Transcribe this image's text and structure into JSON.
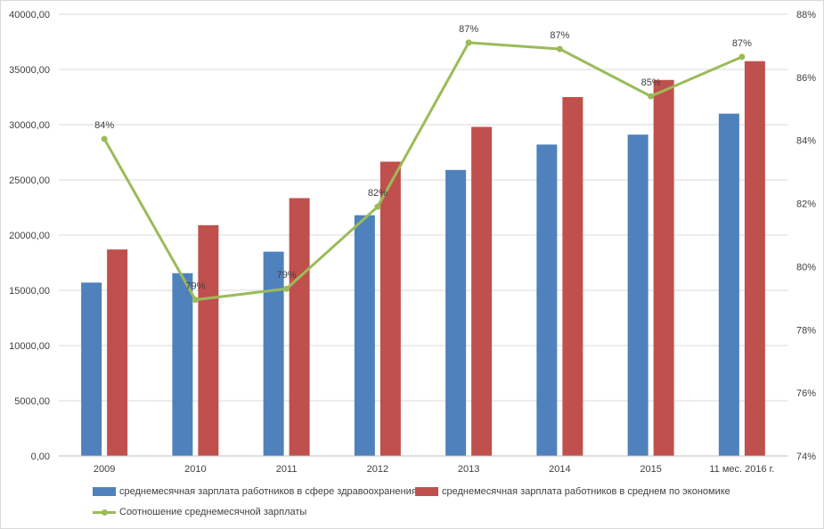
{
  "chart_data": {
    "type": "bar",
    "title": "",
    "categories": [
      "2009",
      "2010",
      "2011",
      "2012",
      "2013",
      "2014",
      "2015",
      "11 мес. 2016 г."
    ],
    "series": [
      {
        "name": "среднемесячная зарплата работников в сфере здравоохранения",
        "type": "bar",
        "axis": "left",
        "color": "#4f81bd",
        "values": [
          15700,
          16550,
          18500,
          21800,
          25900,
          28200,
          29100,
          31000
        ]
      },
      {
        "name": "среднемесячная зарплата работников в среднем по экономике",
        "type": "bar",
        "axis": "left",
        "color": "#c0504d",
        "values": [
          18700,
          20900,
          23350,
          26650,
          29800,
          32500,
          34050,
          35750
        ]
      },
      {
        "name": "Соотношение среднемесячной зарплаты",
        "type": "line",
        "axis": "right",
        "color": "#9bbb59",
        "values": [
          84.05,
          78.95,
          79.3,
          81.9,
          87.1,
          86.9,
          85.4,
          86.65
        ],
        "labels": [
          "84%",
          "79%",
          "79%",
          "82%",
          "87%",
          "87%",
          "85%",
          "87%"
        ]
      }
    ],
    "left_axis": {
      "ylim": [
        0,
        40000
      ],
      "ticks": [
        "0,00",
        "5000,00",
        "10000,00",
        "15000,00",
        "20000,00",
        "25000,00",
        "30000,00",
        "35000,00",
        "40000,00"
      ]
    },
    "right_axis": {
      "ylim": [
        74,
        88
      ],
      "ticks": [
        "74%",
        "76%",
        "78%",
        "80%",
        "82%",
        "84%",
        "86%",
        "88%"
      ]
    },
    "xlabel": "",
    "ylabel": "",
    "grid": true,
    "legend_position": "bottom"
  },
  "colors": {
    "grid": "#d9d9d9",
    "axis_text": "#404040"
  }
}
